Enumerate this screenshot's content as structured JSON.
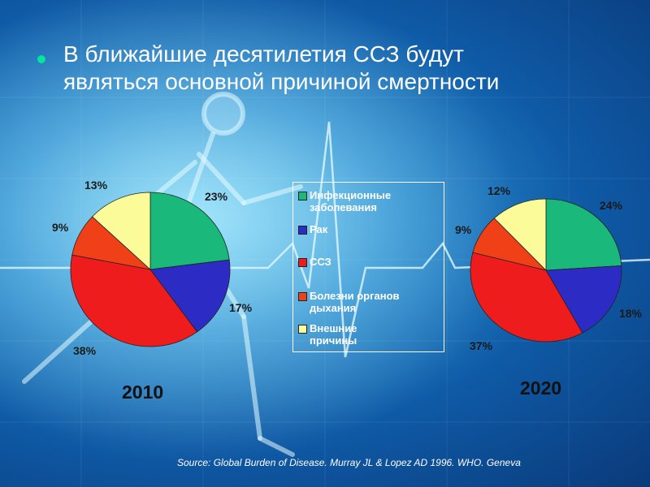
{
  "title": {
    "line1": "В ближайшие десятилетия ССЗ будут",
    "line2": "являться основной причиной смертности"
  },
  "source": "Source: Global Burden of Disease. Murray JL & Lopez AD 1996. WHO. Geneva",
  "colors": {
    "infectious": "#1ab87a",
    "cancer": "#2c2cc4",
    "cvd": "#ee1c1c",
    "respiratory": "#f04018",
    "external": "#fbfb9a",
    "bullet": "#00e5a0"
  },
  "chart_data": [
    {
      "type": "pie",
      "title": "2010",
      "categories": [
        "Инфекционные заболевания",
        "Рак",
        "ССЗ",
        "Болезни органов дыхания",
        "Внешние причины"
      ],
      "labels": [
        "23%",
        "17%",
        "38%",
        "9%",
        "13%"
      ],
      "values": [
        23,
        17,
        38,
        9,
        13
      ]
    },
    {
      "type": "pie",
      "title": "2020",
      "categories": [
        "Инфекционные заболевания",
        "Рак",
        "ССЗ",
        "Болезни органов дыхания",
        "Внешние причины"
      ],
      "labels": [
        "24%",
        "18%",
        "37%",
        "9%",
        "12%"
      ],
      "values": [
        24,
        18,
        37,
        9,
        12
      ]
    }
  ],
  "legend": [
    {
      "line1": "Инфекционные",
      "line2": "заболевания"
    },
    {
      "line1": "Рак",
      "line2": ""
    },
    {
      "line1": "ССЗ",
      "line2": ""
    },
    {
      "line1": "Болезни органов",
      "line2": "дыхания"
    },
    {
      "line1": "Внешние",
      "line2": "причины"
    }
  ]
}
